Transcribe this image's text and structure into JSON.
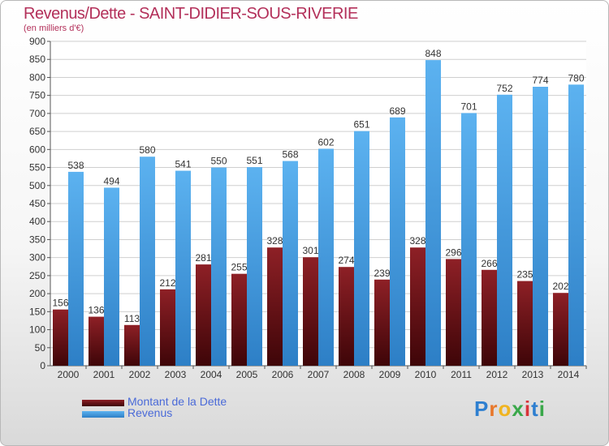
{
  "chart_data": {
    "type": "bar",
    "title": "Revenus/Dette - SAINT-DIDIER-SOUS-RIVERIE",
    "subtitle": "(en milliers d'€)",
    "categories": [
      "2000",
      "2001",
      "2002",
      "2003",
      "2004",
      "2005",
      "2006",
      "2007",
      "2008",
      "2009",
      "2010",
      "2011",
      "2012",
      "2013",
      "2014"
    ],
    "series": [
      {
        "name": "Montant de la Dette",
        "color": "#7a1218",
        "values": [
          156,
          136,
          113,
          212,
          281,
          255,
          328,
          301,
          274,
          239,
          328,
          296,
          266,
          235,
          202
        ]
      },
      {
        "name": "Revenus",
        "color": "#4aa3e8",
        "values": [
          538,
          494,
          580,
          541,
          550,
          551,
          568,
          602,
          651,
          689,
          848,
          701,
          752,
          774,
          780
        ]
      }
    ],
    "ylim": [
      0,
      900
    ],
    "yticks": [
      0,
      50,
      100,
      150,
      200,
      250,
      300,
      350,
      400,
      450,
      500,
      550,
      600,
      650,
      700,
      750,
      800,
      850,
      900
    ],
    "grid": true,
    "legend_position": "bottom-left"
  },
  "logo": {
    "text": "Proxiti"
  }
}
